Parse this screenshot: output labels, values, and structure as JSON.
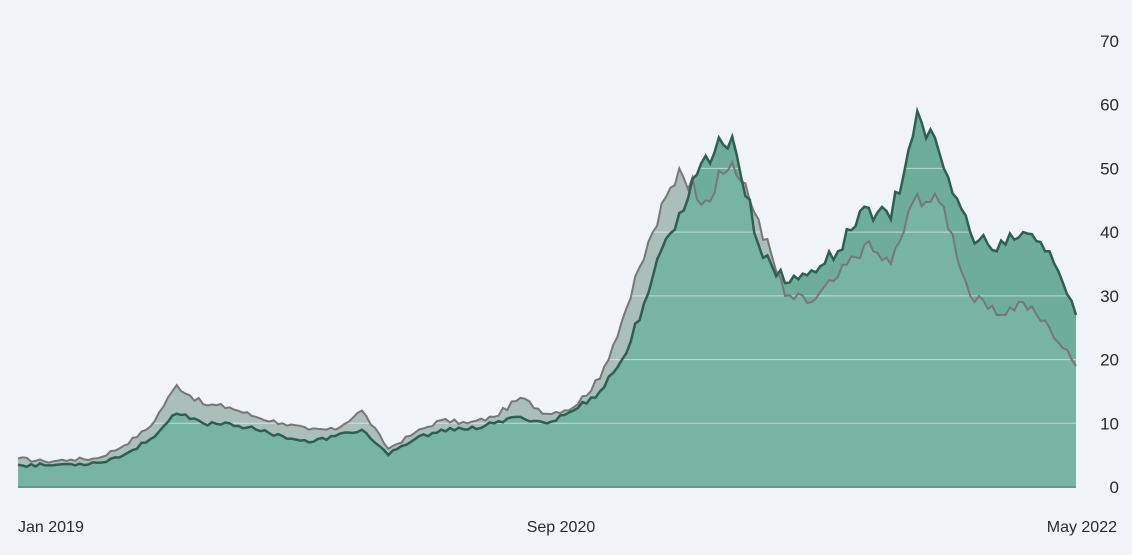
{
  "chart_data": {
    "type": "area",
    "x_ticks": [
      "Jan 2019",
      "Sep 2020",
      "May 2022"
    ],
    "y_ticks": [
      0,
      10,
      20,
      30,
      40,
      50,
      60,
      70
    ],
    "ylim": [
      0,
      70
    ],
    "x_range": [
      "2019-01",
      "2022-05"
    ],
    "grid": true,
    "colors": {
      "background": "#f0f3f7",
      "gridline": "#e3e7ec",
      "green_fill": "#6fad9b",
      "green_fill_light": "#88c3b1",
      "green_line": "#2f5f50",
      "gray_fill": "#bdbdbd",
      "gray_line": "#777777"
    },
    "series": [
      {
        "style": "gray",
        "values": [
          [
            "2019-01",
            4.5
          ],
          [
            "2019-02",
            4.0
          ],
          [
            "2019-03",
            4.3
          ],
          [
            "2019-04",
            4.5
          ],
          [
            "2019-05",
            6.5
          ],
          [
            "2019-06",
            9.5
          ],
          [
            "2019-07",
            16.0
          ],
          [
            "2019-08",
            13.0
          ],
          [
            "2019-09",
            12.5
          ],
          [
            "2019-10",
            11.0
          ],
          [
            "2019-11",
            10.0
          ],
          [
            "2019-12",
            9.0
          ],
          [
            "2020-01",
            9.0
          ],
          [
            "2020-02",
            12.0
          ],
          [
            "2020-03",
            6.0
          ],
          [
            "2020-04",
            8.5
          ],
          [
            "2020-05",
            10.5
          ],
          [
            "2020-06",
            10.0
          ],
          [
            "2020-07",
            11.0
          ],
          [
            "2020-08",
            14.0
          ],
          [
            "2020-09",
            11.5
          ],
          [
            "2020-10",
            12.5
          ],
          [
            "2020-11",
            17.0
          ],
          [
            "2020-12",
            28.0
          ],
          [
            "2021-01",
            40.0
          ],
          [
            "2021-02",
            50.0
          ],
          [
            "2021-03",
            45.0
          ],
          [
            "2021-04",
            51.0
          ],
          [
            "2021-05",
            42.0
          ],
          [
            "2021-06",
            30.0
          ],
          [
            "2021-07",
            29.0
          ],
          [
            "2021-08",
            33.0
          ],
          [
            "2021-09",
            38.0
          ],
          [
            "2021-10",
            35.0
          ],
          [
            "2021-11",
            46.0
          ],
          [
            "2021-12",
            44.0
          ],
          [
            "2022-01",
            30.0
          ],
          [
            "2022-02",
            27.0
          ],
          [
            "2022-03",
            29.0
          ],
          [
            "2022-04",
            25.0
          ],
          [
            "2022-05",
            19.0
          ]
        ]
      },
      {
        "style": "green",
        "values": [
          [
            "2019-01",
            3.5
          ],
          [
            "2019-02",
            3.4
          ],
          [
            "2019-03",
            3.6
          ],
          [
            "2019-04",
            3.8
          ],
          [
            "2019-05",
            5.0
          ],
          [
            "2019-06",
            7.5
          ],
          [
            "2019-07",
            11.5
          ],
          [
            "2019-08",
            10.0
          ],
          [
            "2019-09",
            10.0
          ],
          [
            "2019-10",
            9.0
          ],
          [
            "2019-11",
            8.0
          ],
          [
            "2019-12",
            7.0
          ],
          [
            "2020-01",
            8.0
          ],
          [
            "2020-02",
            9.0
          ],
          [
            "2020-03",
            5.0
          ],
          [
            "2020-04",
            7.5
          ],
          [
            "2020-05",
            9.0
          ],
          [
            "2020-06",
            9.0
          ],
          [
            "2020-07",
            10.0
          ],
          [
            "2020-08",
            11.0
          ],
          [
            "2020-09",
            10.0
          ],
          [
            "2020-10",
            12.0
          ],
          [
            "2020-11",
            15.0
          ],
          [
            "2020-12",
            21.0
          ],
          [
            "2021-01",
            33.0
          ],
          [
            "2021-02",
            43.0
          ],
          [
            "2021-03",
            52.0
          ],
          [
            "2021-04",
            55.0
          ],
          [
            "2021-05",
            38.0
          ],
          [
            "2021-06",
            32.0
          ],
          [
            "2021-07",
            34.0
          ],
          [
            "2021-08",
            37.0
          ],
          [
            "2021-09",
            44.0
          ],
          [
            "2021-10",
            42.0
          ],
          [
            "2021-11",
            59.0
          ],
          [
            "2021-12",
            50.0
          ],
          [
            "2022-01",
            40.0
          ],
          [
            "2022-02",
            37.0
          ],
          [
            "2022-03",
            40.0
          ],
          [
            "2022-04",
            37.0
          ],
          [
            "2022-05",
            27.0
          ]
        ]
      }
    ]
  }
}
